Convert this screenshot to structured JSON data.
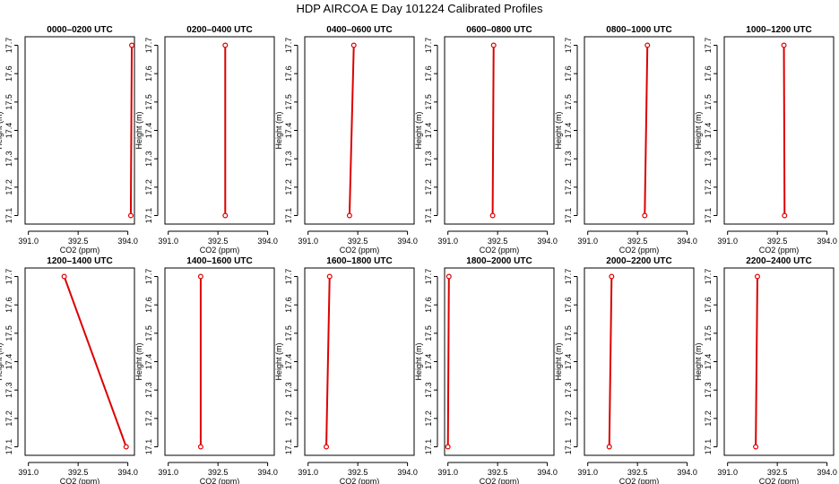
{
  "title": "HDP AIRCOA E  Day 101224  Calibrated Profiles",
  "chart_data": {
    "type": "line",
    "xlabel": "CO2 (ppm)",
    "ylabel": "Height (m)",
    "xlim": [
      390.9,
      394.2
    ],
    "ylim": [
      17.07,
      17.73
    ],
    "xticks": [
      391.0,
      392.5,
      394.0
    ],
    "yticks": [
      17.1,
      17.2,
      17.3,
      17.4,
      17.5,
      17.6,
      17.7
    ],
    "grid": false,
    "line_color": "#dd0000",
    "panels": [
      {
        "title": "0000–0200 UTC",
        "points": [
          {
            "x": 394.09,
            "y": 17.1
          },
          {
            "x": 394.12,
            "y": 17.7
          }
        ]
      },
      {
        "title": "0200–0400 UTC",
        "points": [
          {
            "x": 392.72,
            "y": 17.1
          },
          {
            "x": 392.72,
            "y": 17.7
          }
        ]
      },
      {
        "title": "0400–0600 UTC",
        "points": [
          {
            "x": 392.25,
            "y": 17.1
          },
          {
            "x": 392.38,
            "y": 17.7
          }
        ]
      },
      {
        "title": "0600–0800 UTC",
        "points": [
          {
            "x": 392.35,
            "y": 17.1
          },
          {
            "x": 392.38,
            "y": 17.7
          }
        ]
      },
      {
        "title": "0800–1000 UTC",
        "points": [
          {
            "x": 392.72,
            "y": 17.1
          },
          {
            "x": 392.8,
            "y": 17.7
          }
        ]
      },
      {
        "title": "1000–1200 UTC",
        "points": [
          {
            "x": 392.72,
            "y": 17.1
          },
          {
            "x": 392.7,
            "y": 17.7
          }
        ]
      },
      {
        "title": "1200–1400 UTC",
        "points": [
          {
            "x": 393.95,
            "y": 17.1
          },
          {
            "x": 392.08,
            "y": 17.7
          }
        ]
      },
      {
        "title": "1400–1600 UTC",
        "points": [
          {
            "x": 391.98,
            "y": 17.1
          },
          {
            "x": 391.98,
            "y": 17.7
          }
        ]
      },
      {
        "title": "1600–1800 UTC",
        "points": [
          {
            "x": 391.55,
            "y": 17.1
          },
          {
            "x": 391.65,
            "y": 17.7
          }
        ]
      },
      {
        "title": "1800–2000 UTC",
        "points": [
          {
            "x": 391.0,
            "y": 17.1
          },
          {
            "x": 391.03,
            "y": 17.7
          }
        ]
      },
      {
        "title": "2000–2200 UTC",
        "points": [
          {
            "x": 391.65,
            "y": 17.1
          },
          {
            "x": 391.72,
            "y": 17.7
          }
        ]
      },
      {
        "title": "2200–2400 UTC",
        "points": [
          {
            "x": 391.85,
            "y": 17.1
          },
          {
            "x": 391.9,
            "y": 17.7
          }
        ]
      }
    ]
  }
}
